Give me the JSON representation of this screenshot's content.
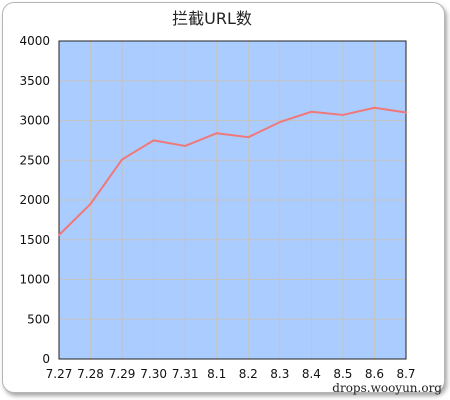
{
  "chart_data": {
    "type": "line",
    "title": "拦截URL数",
    "xlabel": "",
    "ylabel": "",
    "categories": [
      "7.27",
      "7.28",
      "7.29",
      "7.30",
      "7.31",
      "8.1",
      "8.2",
      "8.3",
      "8.4",
      "8.5",
      "8.6",
      "8.7"
    ],
    "series": [
      {
        "values": [
          1560,
          1950,
          2510,
          2750,
          2680,
          2840,
          2790,
          2980,
          3110,
          3070,
          3160,
          3100
        ],
        "color": "#f07878"
      }
    ],
    "ylim": [
      0,
      4000
    ],
    "yticks": [
      0,
      500,
      1000,
      1500,
      2000,
      2500,
      3000,
      3500,
      4000
    ],
    "grid": true,
    "legend": "none",
    "plot_background": "#aaccff",
    "grid_color": "#c4c4c4"
  },
  "watermark": "drops.wooyun.org"
}
